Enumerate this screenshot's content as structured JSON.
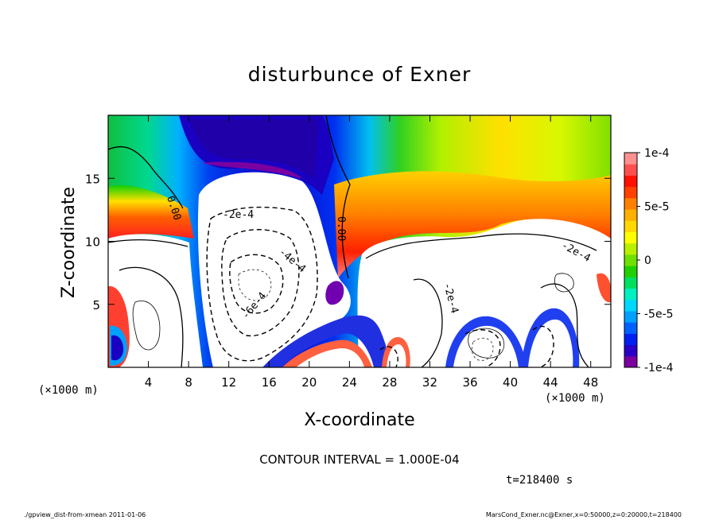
{
  "chart_data": {
    "type": "heatmap",
    "title": "disturbunce of Exner",
    "xlabel": "X-coordinate",
    "ylabel": "Z-coordinate",
    "x_unit": "(×1000 m)",
    "y_unit": "(×1000 m)",
    "xlim": [
      0,
      50
    ],
    "ylim": [
      0,
      20
    ],
    "x_ticks": [
      "4",
      "8",
      "12",
      "16",
      "20",
      "24",
      "28",
      "32",
      "36",
      "40",
      "44",
      "48"
    ],
    "y_ticks": [
      "5",
      "10",
      "15"
    ],
    "colorbar": {
      "min": -0.0001,
      "max": 0.0001,
      "tick_labels": [
        "1e-4",
        "5e-5",
        "0",
        "-5e-5",
        "-1e-4"
      ],
      "colors": [
        "#7a00a0",
        "#2a00c8",
        "#0020f0",
        "#0060ff",
        "#00a0ff",
        "#00d8ff",
        "#00f0c0",
        "#00e060",
        "#20d000",
        "#70e000",
        "#b8f000",
        "#ffff00",
        "#ffd800",
        "#ffb000",
        "#ff8000",
        "#ff4000",
        "#ff1000",
        "#ff5050",
        "#ff9090"
      ]
    },
    "contour_labels": [
      "0.00",
      "0.00",
      "-2e-4",
      "-4e-4",
      "-6e-4",
      "-2e-4",
      "-2e-4"
    ],
    "contour_interval_text": "CONTOUR INTERVAL = 1.000E-04",
    "time_text": "t=218400 s",
    "grid": false,
    "legend": "colorbar-right"
  },
  "footer": {
    "left": "./gpview_dist-from-xmean 2011-01-06",
    "right": "MarsCond_Exner.nc@Exner,x=0:50000,z=0:20000,t=218400"
  }
}
